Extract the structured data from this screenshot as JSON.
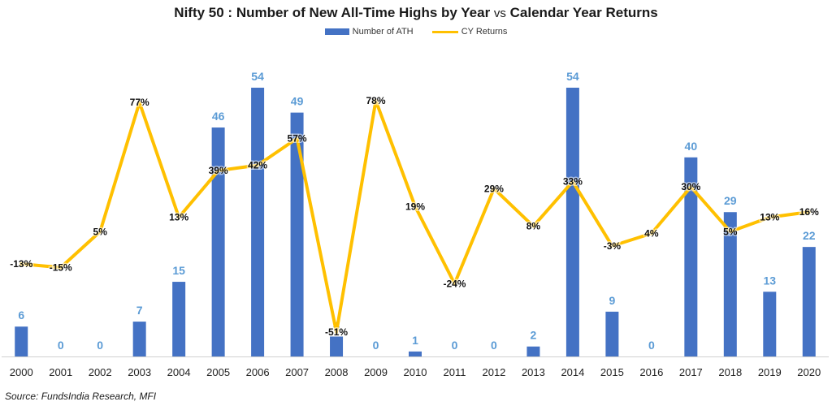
{
  "chart_data": {
    "type": "bar",
    "title_parts": [
      "Nifty 50 : Number of New All-Time Highs by Year ",
      "vs",
      " Calendar Year Returns"
    ],
    "categories": [
      "2000",
      "2001",
      "2002",
      "2003",
      "2004",
      "2005",
      "2006",
      "2007",
      "2008",
      "2009",
      "2010",
      "2011",
      "2012",
      "2013",
      "2014",
      "2015",
      "2016",
      "2017",
      "2018",
      "2019",
      "2020"
    ],
    "series": [
      {
        "name": "Number of ATH",
        "type": "bar",
        "color": "#4472c4",
        "values": [
          6,
          0,
          0,
          7,
          15,
          46,
          54,
          49,
          4,
          0,
          1,
          0,
          0,
          2,
          54,
          9,
          0,
          40,
          29,
          13,
          22
        ]
      },
      {
        "name": "CY Returns",
        "type": "line",
        "color": "#ffc000",
        "values": [
          -13,
          -15,
          5,
          77,
          13,
          39,
          42,
          57,
          -51,
          78,
          19,
          -24,
          29,
          8,
          33,
          -3,
          4,
          30,
          5,
          13,
          16
        ],
        "labels": [
          "-13%",
          "-15%",
          "5%",
          "77%",
          "13%",
          "39%",
          "42%",
          "57%",
          "-51%",
          "78%",
          "19%",
          "-24%",
          "29%",
          "8%",
          "33%",
          "-3%",
          "4%",
          "30%",
          "5%",
          "13%",
          "16%"
        ]
      }
    ],
    "bar_ylim": [
      0,
      60
    ],
    "line_ylim": [
      -60,
      90
    ],
    "grid": false,
    "legend": "top-center",
    "source": "Source: FundsIndia Research, MFI"
  }
}
